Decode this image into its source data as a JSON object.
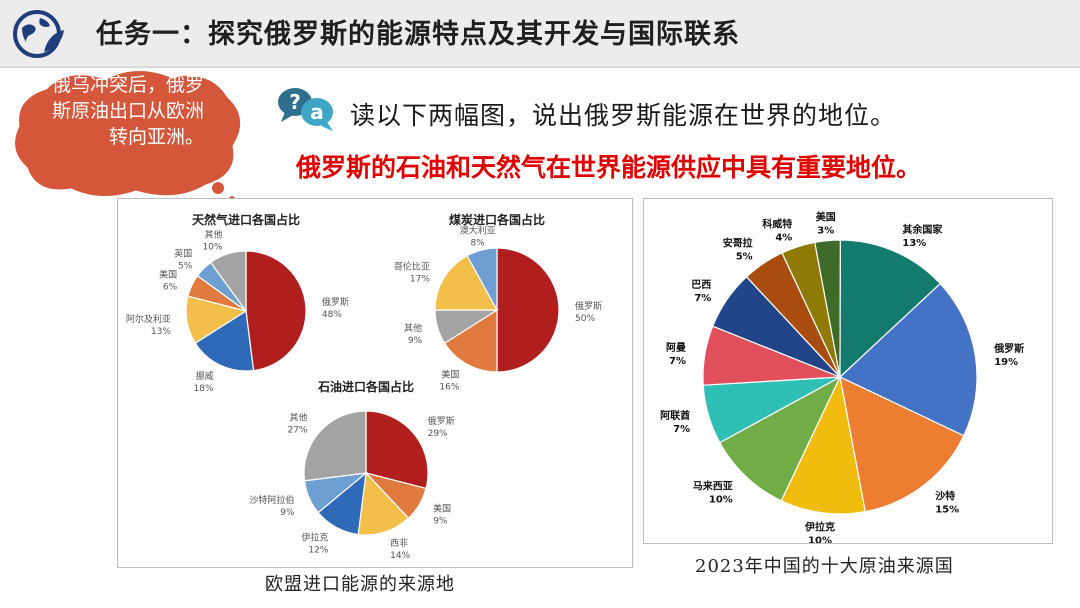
{
  "header": {
    "title": "任务一：探究俄罗斯的能源特点及其开发与国际联系",
    "icon": "globe-leaf-icon"
  },
  "bubble": {
    "text": "俄乌冲突后，俄罗斯原油出口从欧洲转向亚洲。"
  },
  "question": {
    "icon": "question-answer-icon",
    "text": "读以下两幅图，说出俄罗斯能源在世界的地位。"
  },
  "answer": {
    "text": "俄罗斯的石油和天然气在世界能源供应中具有重要地位。"
  },
  "captions": {
    "left": "欧盟进口能源的来源地",
    "right": "2023年中国的十大原油来源国"
  },
  "chart_data": [
    {
      "type": "pie",
      "title": "天然气进口各国占比",
      "labels": [
        "俄罗斯",
        "挪威",
        "阿尔及利亚",
        "美国",
        "英国",
        "其他"
      ],
      "values": [
        48,
        18,
        13,
        6,
        5,
        10
      ],
      "display": [
        "48%",
        "18%",
        "13%",
        "6%",
        "5%",
        "10%"
      ],
      "colors": [
        "#b01e1e",
        "#2f6ab8",
        "#f2c04a",
        "#e07a3e",
        "#6e9fd3",
        "#a3a3a3"
      ]
    },
    {
      "type": "pie",
      "title": "煤炭进口各国占比",
      "labels": [
        "俄罗斯",
        "美国",
        "其他",
        "哥伦比亚",
        "澳大利亚"
      ],
      "values": [
        50,
        16,
        9,
        17,
        8
      ],
      "display": [
        "50%",
        "16%",
        "9%",
        "17%",
        "8%"
      ],
      "colors": [
        "#b01e1e",
        "#e07a3e",
        "#a3a3a3",
        "#f2c04a",
        "#6e9fd3"
      ]
    },
    {
      "type": "pie",
      "title": "石油进口各国占比",
      "labels": [
        "俄罗斯",
        "美国",
        "西非",
        "伊拉克",
        "沙特阿拉伯",
        "其他"
      ],
      "values": [
        29,
        9,
        14,
        12,
        9,
        27
      ],
      "display": [
        "29%",
        "9%",
        "14%",
        "12%",
        "9%",
        "27%"
      ],
      "colors": [
        "#b01e1e",
        "#e07a3e",
        "#f2c04a",
        "#2f6ab8",
        "#6e9fd3",
        "#a3a3a3"
      ]
    },
    {
      "type": "pie",
      "title": "",
      "labels": [
        "俄罗斯",
        "沙特",
        "伊拉克",
        "马来西亚",
        "阿联酋",
        "阿曼",
        "巴西",
        "安哥拉",
        "科威特",
        "美国",
        "其余国家"
      ],
      "values": [
        19,
        15,
        10,
        10,
        7,
        7,
        7,
        5,
        4,
        3,
        13
      ],
      "display": [
        "19%",
        "15%",
        "10%",
        "10%",
        "7%",
        "7%",
        "7%",
        "5%",
        "4%",
        "3%",
        "13%"
      ],
      "colors": [
        "#4472c4",
        "#ed7d31",
        "#f0bd0e",
        "#70ad47",
        "#2fbfb5",
        "#e14f5c",
        "#22458a",
        "#a84c10",
        "#8f7a06",
        "#3f6b2a",
        "#137a6e"
      ]
    }
  ]
}
